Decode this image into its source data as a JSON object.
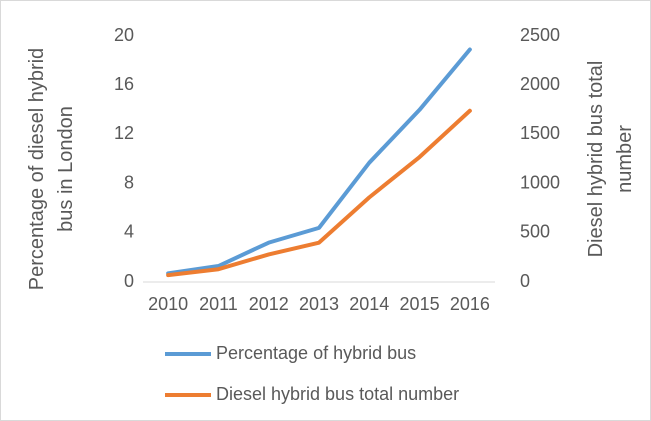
{
  "chart_data": {
    "type": "line",
    "categories": [
      "2010",
      "2011",
      "2012",
      "2013",
      "2014",
      "2015",
      "2016"
    ],
    "series": [
      {
        "name": "Percentage of hybrid bus",
        "color": "#5b9bd5",
        "values": [
          0.7,
          1.3,
          3.2,
          4.4,
          9.7,
          14.0,
          18.9
        ]
      },
      {
        "name": "Diesel hybrid bus total number",
        "color": "#ed7d31",
        "axis": "y2",
        "values": [
          70,
          130,
          280,
          400,
          860,
          1270,
          1740
        ]
      }
    ],
    "ylabel": "Percentage of diesel hybrid bus in London",
    "y2label": "Diesel hybrid bus total number",
    "ylim": [
      0,
      20
    ],
    "yticks": [
      0,
      4,
      8,
      12,
      16,
      20
    ],
    "y2lim": [
      0,
      2500
    ],
    "y2ticks": [
      0,
      500,
      1000,
      1500,
      2000,
      2500
    ],
    "legend": "bottom",
    "grid": false
  }
}
